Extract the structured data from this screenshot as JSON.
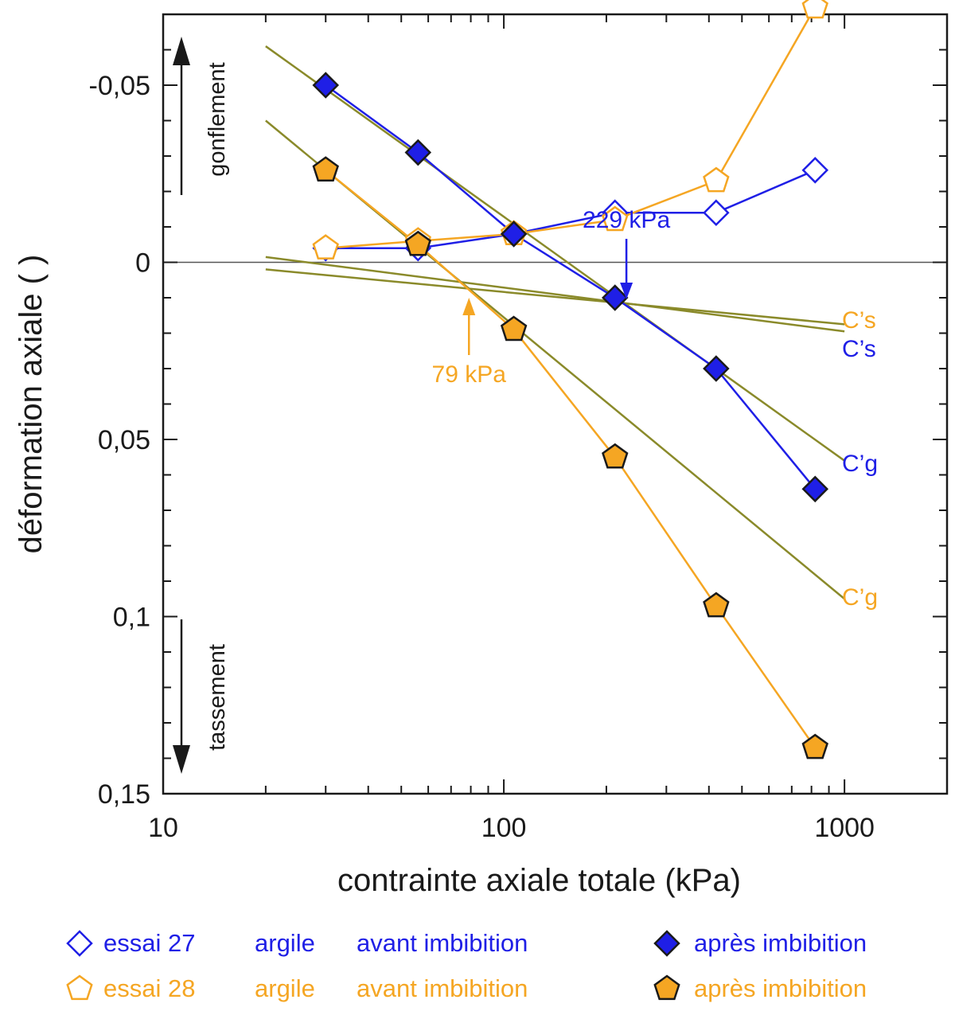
{
  "chart_data": {
    "type": "scatter",
    "xscale": "log",
    "xlim": [
      10,
      2000
    ],
    "ylim": [
      -0.07,
      0.15
    ],
    "y_inverted": true,
    "xlabel": "contrainte axiale totale (kPa)",
    "ylabel": "déformation axiale ( )",
    "x_ticks": [
      10,
      100,
      1000
    ],
    "x_tick_labels": [
      "10",
      "100",
      "1000"
    ],
    "y_ticks": [
      -0.05,
      0,
      0.05,
      0.1,
      0.15
    ],
    "y_tick_labels": [
      "-0,05",
      "0",
      "0,05",
      "0,1",
      "0,15"
    ],
    "direction_labels": {
      "up": "gonflement",
      "down": "tassement"
    },
    "colors": {
      "blue": "#1f1fe6",
      "orange": "#f5a623",
      "fit": "#7f7f1f",
      "olive": "#8a8a2a"
    },
    "series": [
      {
        "name": "essai 27 argile avant imbibition",
        "color": "#1f1fe6",
        "marker": "diamond",
        "filled": false,
        "x": [
          30,
          56,
          107,
          212,
          420,
          820
        ],
        "y": [
          -0.004,
          -0.004,
          -0.008,
          -0.014,
          -0.014,
          -0.026
        ]
      },
      {
        "name": "essai 28 argile avant imbibition",
        "color": "#f5a623",
        "marker": "pentagon",
        "filled": false,
        "x": [
          30,
          56,
          107,
          212,
          420,
          820
        ],
        "y": [
          -0.004,
          -0.006,
          -0.008,
          -0.012,
          -0.023,
          -0.072
        ]
      },
      {
        "name": "essai 27 argile après imbibition",
        "color": "#1f1fe6",
        "marker": "diamond",
        "filled": true,
        "x": [
          30,
          56,
          107,
          212,
          420,
          820
        ],
        "y": [
          -0.05,
          -0.031,
          -0.008,
          0.01,
          0.03,
          0.064
        ]
      },
      {
        "name": "essai 28 argile après imbibition",
        "color": "#f5a623",
        "marker": "pentagon",
        "filled": true,
        "x": [
          30,
          56,
          107,
          212,
          420,
          820
        ],
        "y": [
          -0.026,
          -0.005,
          0.019,
          0.055,
          0.097,
          0.137
        ]
      }
    ],
    "fit_lines": [
      {
        "name": "C's essai 27",
        "x": [
          20,
          1000
        ],
        "y": [
          -0.0015,
          0.0195
        ]
      },
      {
        "name": "C's essai 28",
        "x": [
          20,
          1000
        ],
        "y": [
          0.002,
          0.0175
        ]
      },
      {
        "name": "C'g essai 27",
        "x": [
          20,
          1000
        ],
        "y": [
          -0.061,
          0.056
        ]
      },
      {
        "name": "C'g essai 28",
        "x": [
          20,
          1000
        ],
        "y": [
          -0.04,
          0.095
        ]
      }
    ],
    "annotations": [
      {
        "text": "229 kPa",
        "color": "#1f1fe6",
        "x": 229,
        "y": 0.0125
      },
      {
        "text": "79 kPa",
        "color": "#f5a623",
        "x": 79,
        "y": 0.008
      },
      {
        "text": "C’s",
        "color": "#f5a623"
      },
      {
        "text": "C’s",
        "color": "#1f1fe6"
      },
      {
        "text": "C’g",
        "color": "#1f1fe6"
      },
      {
        "text": "C’g",
        "color": "#f5a623"
      }
    ],
    "legend": {
      "placement": "bottom",
      "rows": [
        {
          "color": "#1f1fe6",
          "marker": "diamond",
          "essai": "essai 27",
          "material": "argile",
          "before": "avant imbibition",
          "after": "après imbibition"
        },
        {
          "color": "#f5a623",
          "marker": "pentagon",
          "essai": "essai 28",
          "material": "argile",
          "before": "avant imbibition",
          "after": "après imbibition"
        }
      ]
    }
  }
}
